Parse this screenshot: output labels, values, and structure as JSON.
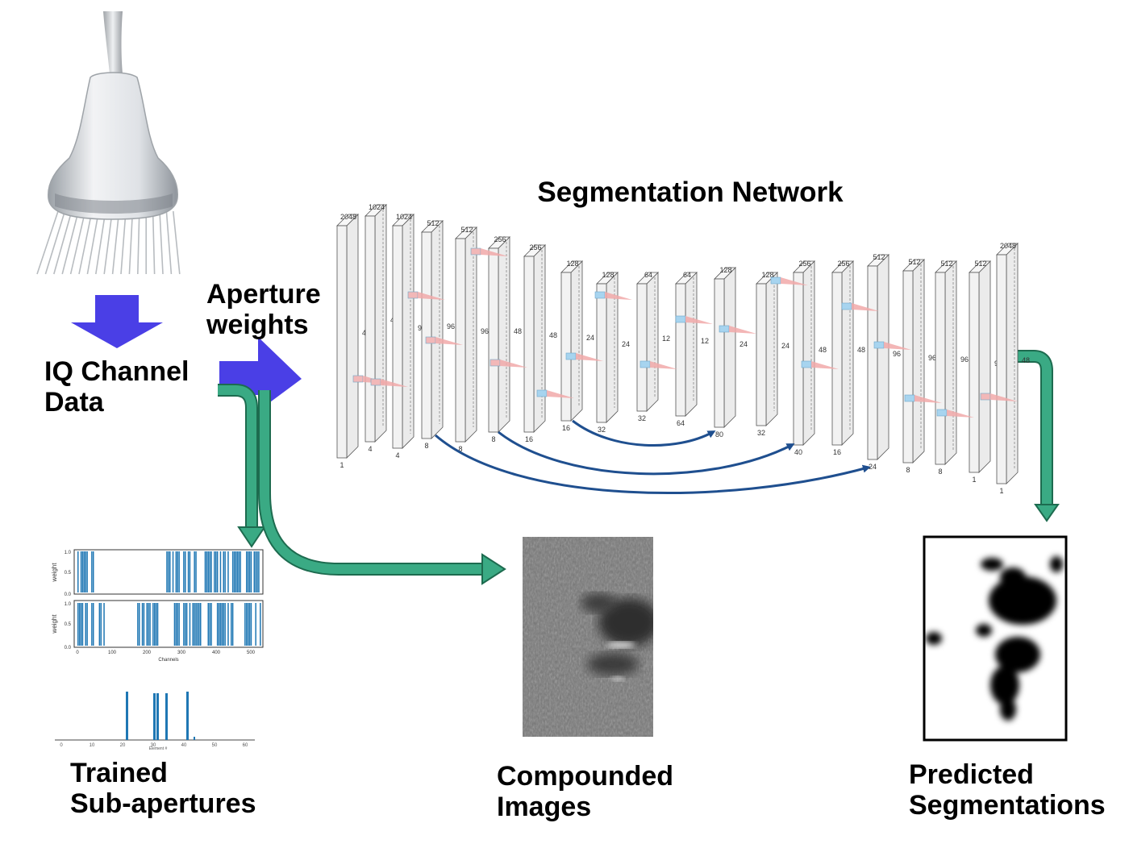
{
  "title": "Segmentation Network",
  "labels": {
    "iq_line1": "IQ Channel",
    "iq_line2": "Data",
    "aperture_line1": "Aperture",
    "aperture_line2": "weights",
    "trained_line1": "Trained",
    "trained_line2": "Sub-apertures",
    "compounded_line1": "Compounded",
    "compounded_line2": "Images",
    "predicted_line1": "Predicted",
    "predicted_line2": "Segmentations"
  },
  "network_layers": [
    {
      "channels": "2048",
      "height": "48",
      "width": "1"
    },
    {
      "channels": "1024",
      "height": "48",
      "width": "4"
    },
    {
      "channels": "1024",
      "height": "96",
      "width": "4"
    },
    {
      "channels": "512",
      "height": "96",
      "width": "8"
    },
    {
      "channels": "512",
      "height": "96",
      "width": "8"
    },
    {
      "channels": "256",
      "height": "48",
      "width": "8"
    },
    {
      "channels": "256",
      "height": "48",
      "width": "16"
    },
    {
      "channels": "128",
      "height": "24",
      "width": "16"
    },
    {
      "channels": "128",
      "height": "24",
      "width": "32"
    },
    {
      "channels": "64",
      "height": "12",
      "width": "32"
    },
    {
      "channels": "64",
      "height": "12",
      "width": "64"
    },
    {
      "channels": "128",
      "height": "24",
      "width": "80"
    },
    {
      "channels": "128",
      "height": "24",
      "width": "32"
    },
    {
      "channels": "256",
      "height": "48",
      "width": "40"
    },
    {
      "channels": "256",
      "height": "48",
      "width": "16"
    },
    {
      "channels": "512",
      "height": "96",
      "width": "24"
    },
    {
      "channels": "512",
      "height": "96",
      "width": "8"
    },
    {
      "channels": "512",
      "height": "96",
      "width": "8"
    },
    {
      "channels": "512",
      "height": "96",
      "width": "1"
    },
    {
      "channels": "2048",
      "height": "48",
      "width": "1"
    }
  ],
  "plots": {
    "top_ylabel": "weight",
    "mid_ylabel": "weight",
    "top_yticks": [
      "1.0",
      "0.5",
      "0.0"
    ],
    "mid_yticks": [
      "1.0",
      "0.5",
      "0.0"
    ],
    "mid_xticks": [
      "0",
      "100",
      "200",
      "300",
      "400",
      "500"
    ],
    "mid_xlabel": "Channels",
    "bottom_xticks": [
      "0",
      "10",
      "20",
      "30",
      "40",
      "50",
      "60"
    ],
    "bottom_xlabel": "Element #"
  },
  "colors": {
    "arrow_blue": "#4a3fe6",
    "arrow_green": "#3aaa84",
    "skip_arrow": "#1f4f8f",
    "bar_blue": "#1f77b4"
  }
}
